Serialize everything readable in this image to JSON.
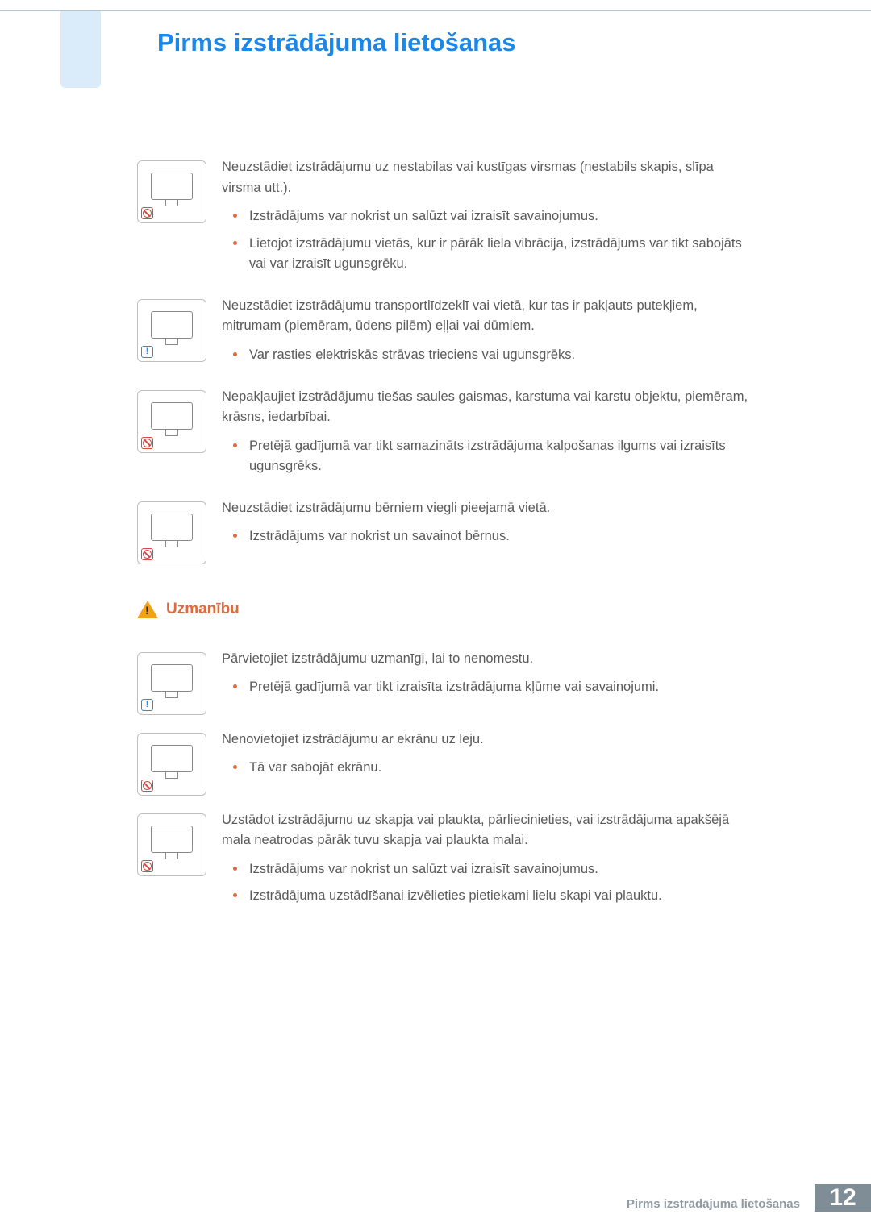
{
  "title": "Pirms izstrādājuma lietošanas",
  "warnings": [
    {
      "badge": "prohibit",
      "lead": "Neuzstādiet izstrādājumu uz nestabilas vai kustīgas virsmas (nestabils skapis, slīpa virsma utt.).",
      "bullets": [
        "Izstrādājums var nokrist un salūzt vai izraisīt savainojumus.",
        "Lietojot izstrādājumu vietās, kur ir pārāk liela vibrācija, izstrādājums var tikt sabojāts vai var izraisīt ugunsgrēku."
      ]
    },
    {
      "badge": "info",
      "lead": "Neuzstādiet izstrādājumu transportlīdzeklī vai vietā, kur tas ir pakļauts putekļiem, mitrumam (piemēram, ūdens pilēm) eļļai vai dūmiem.",
      "bullets": [
        "Var rasties elektriskās strāvas trieciens vai ugunsgrēks."
      ]
    },
    {
      "badge": "prohibit",
      "lead": "Nepakļaujiet izstrādājumu tiešas saules gaismas, karstuma vai karstu objektu, piemēram, krāsns, iedarbībai.",
      "bullets": [
        "Pretējā gadījumā var tikt samazināts izstrādājuma kalpošanas ilgums vai izraisīts ugunsgrēks."
      ]
    },
    {
      "badge": "prohibit",
      "lead": "Neuzstādiet izstrādājumu bērniem viegli pieejamā vietā.",
      "bullets": [
        "Izstrādājums var nokrist un savainot bērnus."
      ]
    }
  ],
  "caution_label": "Uzmanību",
  "cautions": [
    {
      "badge": "info",
      "lead": "Pārvietojiet izstrādājumu uzmanīgi, lai to nenomestu.",
      "bullets": [
        "Pretējā gadījumā var tikt izraisīta izstrādājuma kļūme vai savainojumi."
      ]
    },
    {
      "badge": "prohibit",
      "lead": "Nenovietojiet izstrādājumu ar ekrānu uz leju.",
      "bullets": [
        "Tā var sabojāt ekrānu."
      ]
    },
    {
      "badge": "prohibit",
      "lead": "Uzstādot izstrādājumu uz skapja vai plaukta, pārliecinieties, vai izstrādājuma apakšējā mala neatrodas pārāk tuvu skapja vai plaukta malai.",
      "bullets": [
        "Izstrādājums var nokrist un salūzt vai izraisīt savainojumus.",
        "Izstrādājuma uzstādīšanai izvēlieties pietiekami lielu skapi vai plauktu."
      ]
    }
  ],
  "footer_text": "Pirms izstrādājuma lietošanas",
  "page_number": "12"
}
